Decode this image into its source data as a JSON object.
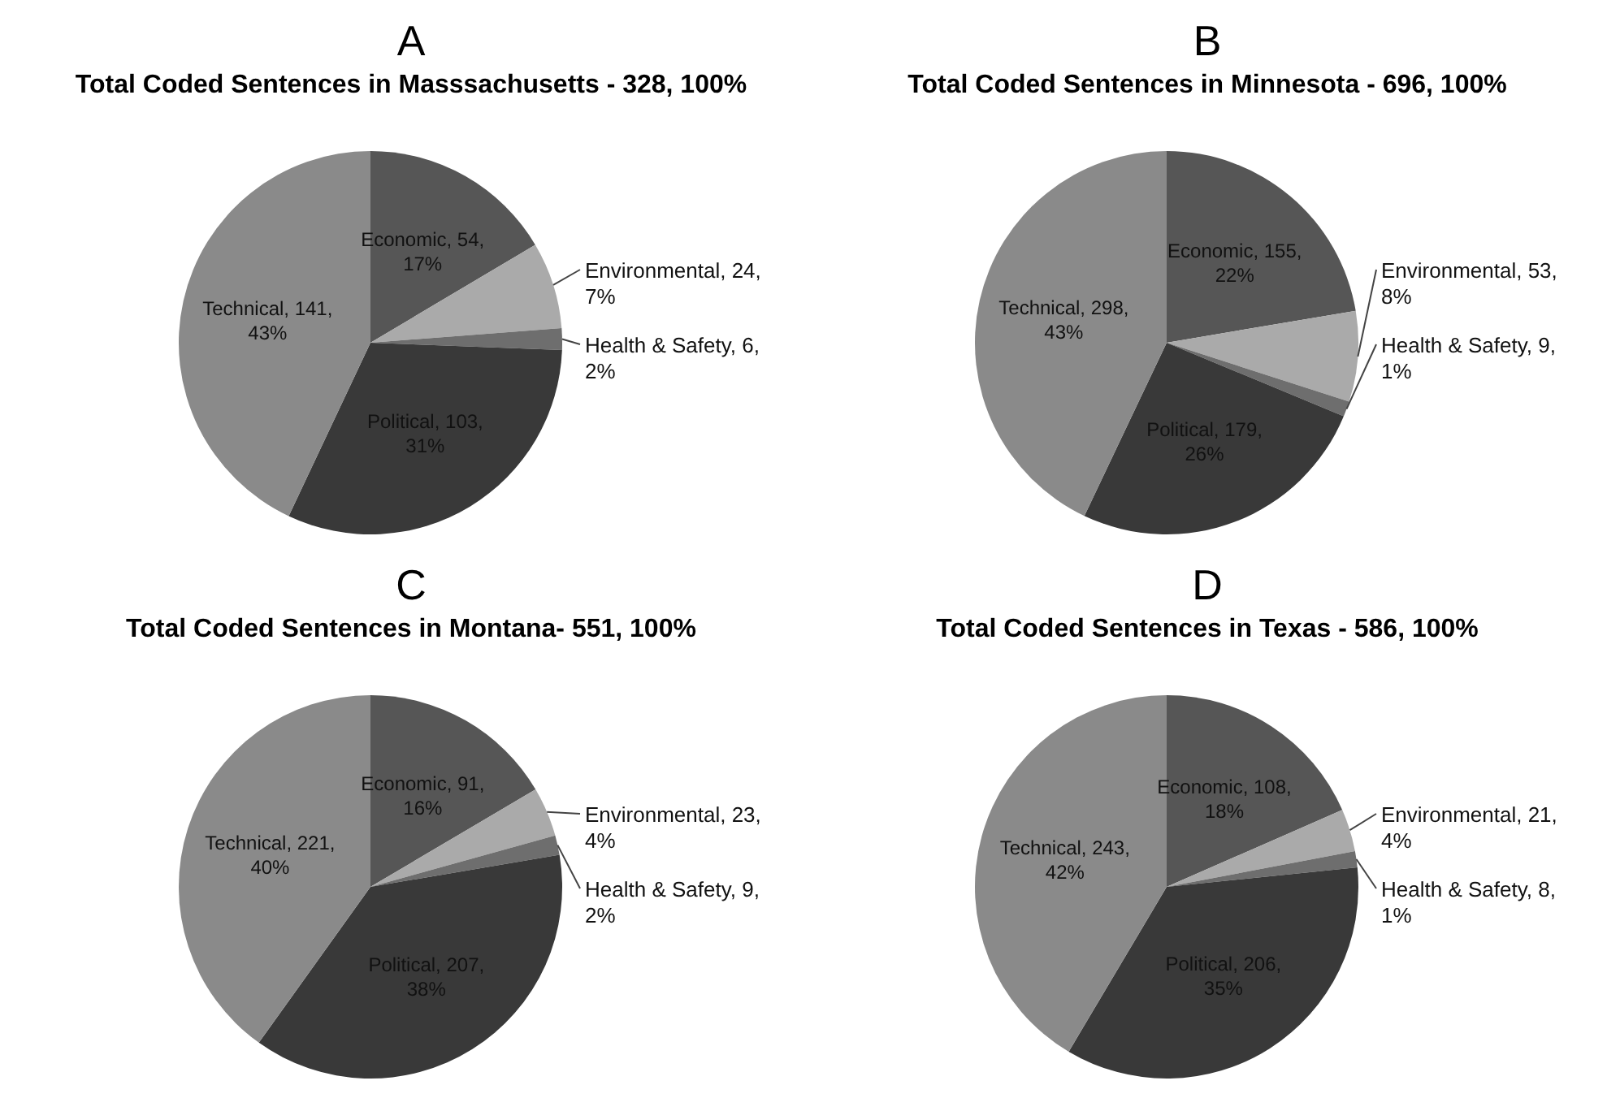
{
  "chart_data": [
    {
      "type": "pie",
      "title": "A",
      "subtitle": "Total Coded Sentences in Masssachusetts - 328, 100%",
      "categories": [
        "Economic",
        "Environmental",
        "Health & Safety",
        "Political",
        "Technical"
      ],
      "values": [
        54,
        24,
        6,
        103,
        141
      ],
      "value_labels": [
        "54, 17%",
        "24, 7%",
        "6, 2%",
        "103, 31%",
        "141, 43%"
      ],
      "colors": [
        "#565656",
        "#aaaaaa",
        "#6e6e6e",
        "#393939",
        "#8a8a8a"
      ],
      "legend": false
    },
    {
      "type": "pie",
      "title": "B",
      "subtitle": "Total Coded Sentences in Minnesota - 696, 100%",
      "categories": [
        "Economic",
        "Environmental",
        "Health & Safety",
        "Political",
        "Technical"
      ],
      "values": [
        155,
        53,
        9,
        179,
        298
      ],
      "value_labels": [
        "155, 22%",
        "53, 8%",
        "9, 1%",
        "179, 26%",
        "298, 43%"
      ],
      "colors": [
        "#565656",
        "#aaaaaa",
        "#6e6e6e",
        "#393939",
        "#8a8a8a"
      ],
      "legend": false
    },
    {
      "type": "pie",
      "title": "C",
      "subtitle": "Total Coded Sentences in Montana- 551, 100%",
      "categories": [
        "Economic",
        "Environmental",
        "Health & Safety",
        "Political",
        "Technical"
      ],
      "values": [
        91,
        23,
        9,
        207,
        221
      ],
      "value_labels": [
        "91, 16%",
        "23, 4%",
        "9, 2%",
        "207, 38%",
        "221, 40%"
      ],
      "colors": [
        "#565656",
        "#aaaaaa",
        "#6e6e6e",
        "#393939",
        "#8a8a8a"
      ],
      "legend": false
    },
    {
      "type": "pie",
      "title": "D",
      "subtitle": "Total Coded Sentences in Texas - 586, 100%",
      "categories": [
        "Economic",
        "Environmental",
        "Health & Safety",
        "Political",
        "Technical"
      ],
      "values": [
        108,
        21,
        8,
        206,
        243
      ],
      "value_labels": [
        "108, 18%",
        "21, 4%",
        "8, 1%",
        "206, 35%",
        "243, 42%"
      ],
      "colors": [
        "#565656",
        "#aaaaaa",
        "#6e6e6e",
        "#393939",
        "#8a8a8a"
      ],
      "legend": false
    }
  ]
}
